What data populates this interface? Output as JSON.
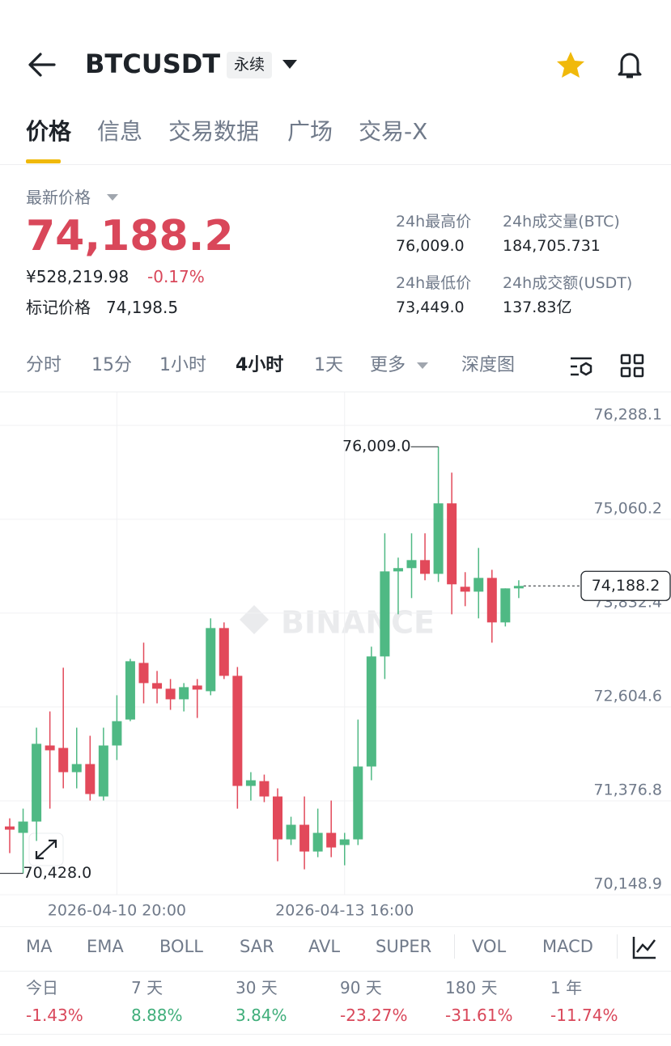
{
  "header": {
    "symbol": "BTCUSDT",
    "tag": "永续"
  },
  "tabs": [
    "价格",
    "信息",
    "交易数据",
    "广场",
    "交易-X"
  ],
  "ticker": {
    "label": "最新价格",
    "price": "74,188.2",
    "cny": "¥528,219.98",
    "change": "-0.17%",
    "mark_label": "标记价格",
    "mark_price": "74,198.5",
    "stats": [
      {
        "label": "24h最高价",
        "value": "76,009.0"
      },
      {
        "label": "24h成交量(BTC)",
        "value": "184,705.731"
      },
      {
        "label": "24h最低价",
        "value": "73,449.0"
      },
      {
        "label": "24h成交额(USDT)",
        "value": "137.83亿"
      }
    ]
  },
  "intervals": [
    "分时",
    "15分",
    "1小时",
    "4小时",
    "1天",
    "更多",
    "深度图"
  ],
  "chart_data": {
    "type": "candlestick",
    "watermark": "BINANCE",
    "categories": [
      null,
      null,
      null,
      null,
      null,
      null,
      null,
      null,
      "2026-04-10 20:00",
      null,
      null,
      null,
      null,
      null,
      null,
      null,
      null,
      null,
      null,
      null,
      null,
      null,
      null,
      null,
      null,
      "2026-04-13 16:00",
      null,
      null,
      null,
      null,
      null,
      null,
      null,
      null,
      null,
      null,
      null,
      null,
      null
    ],
    "open": [
      71042,
      70958,
      71106,
      72101,
      72069,
      71752,
      71858,
      71434,
      72101,
      72440,
      73181,
      72917,
      72843,
      72705,
      72885,
      72811,
      73637,
      73012,
      71572,
      71635,
      71434,
      70873,
      71064,
      70714,
      70958,
      70799,
      70873,
      71826,
      73266,
      74378,
      74421,
      74526,
      74346,
      75268,
      74177,
      74113,
      74293,
      73711,
      74156
    ],
    "high": [
      71148,
      71275,
      72334,
      72546,
      73118,
      72334,
      72228,
      72334,
      72758,
      73234,
      73446,
      73076,
      72970,
      72917,
      72970,
      73764,
      73711,
      73128,
      71752,
      71720,
      71540,
      71169,
      71434,
      71275,
      71381,
      70958,
      72440,
      73393,
      74876,
      74558,
      74876,
      74876,
      76009,
      75670,
      74368,
      74685,
      74399,
      74156,
      74262
    ],
    "low": [
      70693,
      70428,
      70852,
      71275,
      71540,
      71540,
      71381,
      71381,
      71911,
      72419,
      72652,
      72652,
      72567,
      72546,
      72461,
      72758,
      72970,
      71275,
      71381,
      71360,
      70587,
      70799,
      70481,
      70640,
      70640,
      70534,
      70799,
      71646,
      72970,
      73817,
      74029,
      74262,
      74240,
      73817,
      73923,
      73764,
      73446,
      73658,
      74029
    ],
    "close": [
      71000,
      71106,
      72123,
      72038,
      71752,
      71858,
      71466,
      72101,
      72419,
      73203,
      72917,
      72843,
      72705,
      72864,
      72832,
      73637,
      73012,
      71572,
      71646,
      71434,
      70873,
      71064,
      70714,
      70958,
      70767,
      70873,
      71826,
      73266,
      74378,
      74421,
      74526,
      74346,
      75268,
      74209,
      74113,
      74293,
      73711,
      74156,
      74188.2
    ],
    "up_color": "#4fb984",
    "down_color": "#e2495a",
    "ylim": [
      70148.9,
      76720
    ],
    "yticks": [
      {
        "value": 76288.1,
        "label": "76,288.1"
      },
      {
        "value": 75060.2,
        "label": "75,060.2"
      },
      {
        "value": 73832.4,
        "label": "73,832.4"
      },
      {
        "value": 72604.6,
        "label": "72,604.6"
      },
      {
        "value": 71376.8,
        "label": "71,376.8"
      },
      {
        "value": 70148.9,
        "label": "70,148.9"
      }
    ],
    "grid": true,
    "high_marker": {
      "value": 76009.0,
      "label": "76,009.0"
    },
    "low_marker": {
      "value": 70428.0,
      "label": "70,428.0"
    },
    "last_price": {
      "value": 74188.2,
      "label": "74,188.2"
    }
  },
  "indicators": [
    "MA",
    "EMA",
    "BOLL",
    "SAR",
    "AVL",
    "SUPER",
    "VOL",
    "MACD"
  ],
  "performance": [
    {
      "label": "今日",
      "value": "-1.43%"
    },
    {
      "label": "7 天",
      "value": "8.88%"
    },
    {
      "label": "30 天",
      "value": "3.84%"
    },
    {
      "label": "90 天",
      "value": "-23.27%"
    },
    {
      "label": "180 天",
      "value": "-31.61%"
    },
    {
      "label": "1 年",
      "value": "-11.74%"
    }
  ]
}
